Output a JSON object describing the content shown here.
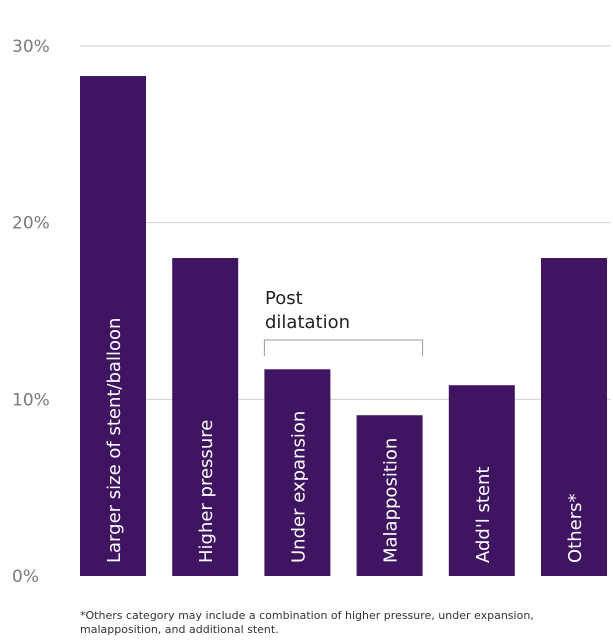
{
  "chart_data": {
    "type": "bar",
    "categories": [
      "Larger size of stent/balloon",
      "Higher pressure",
      "Under expansion",
      "Malapposition",
      "Add'l stent",
      "Others*"
    ],
    "values": [
      28.3,
      18.0,
      11.7,
      9.1,
      10.8,
      18.0
    ],
    "yticks": [
      "0%",
      "10%",
      "20%",
      "30%"
    ],
    "ylim": [
      0,
      30
    ],
    "grid": true,
    "bar_color": "#3f1461",
    "annotation": {
      "line1": "Post",
      "line2": "dilatation",
      "spans": [
        "Under expansion",
        "Malapposition"
      ]
    },
    "footnote": "*Others category may include a combination of higher pressure, under expansion, malapposition, and additional stent."
  }
}
